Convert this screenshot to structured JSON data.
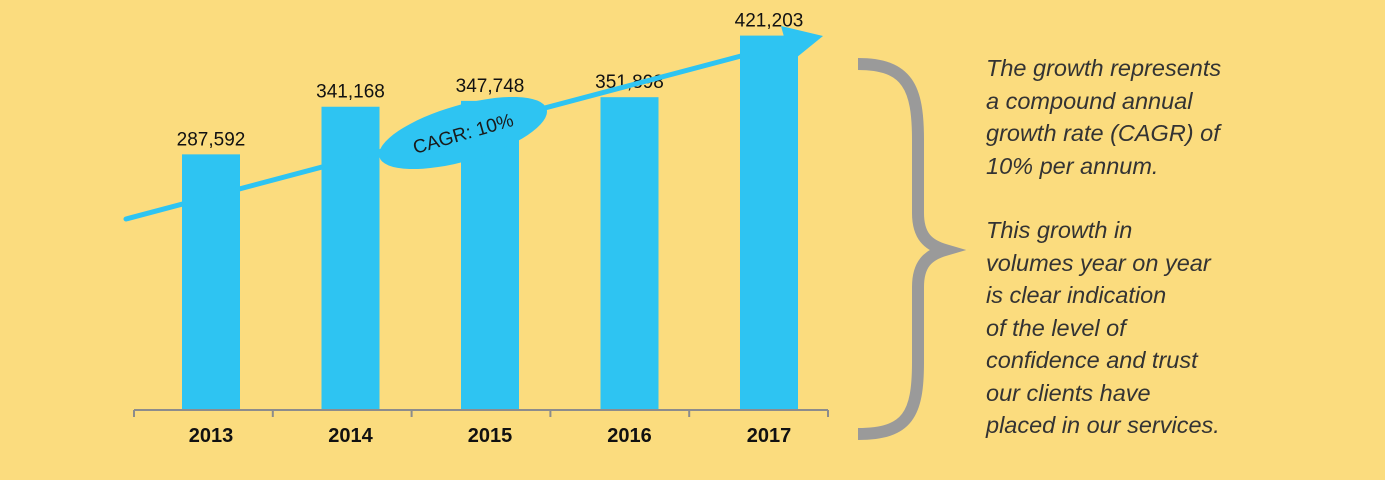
{
  "chart_data": {
    "type": "bar",
    "categories": [
      "2013",
      "2014",
      "2015",
      "2016",
      "2017"
    ],
    "values": [
      287592,
      341168,
      347748,
      351898,
      421203
    ],
    "value_labels": [
      "287,592",
      "341,168",
      "347,748",
      "351,898",
      "421,203"
    ],
    "title": "",
    "xlabel": "",
    "ylabel": "",
    "ylim": [
      0,
      450000
    ],
    "grid": false,
    "annotation": "CAGR: 10%",
    "colors": {
      "bar": "#2ec4f2",
      "arrow": "#2ec4f2",
      "axis": "#8c8c8c",
      "brace": "#9a9a9a",
      "background": "#fbdc7e"
    }
  },
  "description": {
    "paragraphs": [
      {
        "lines": [
          "The growth represents",
          "a compound annual",
          "growth rate (CAGR) of",
          "10% per annum."
        ]
      },
      {
        "lines": [
          "This growth in",
          "volumes year on year",
          "is clear indication",
          "of the level of",
          "confidence and trust",
          "our clients have",
          "placed in our services."
        ]
      }
    ]
  }
}
